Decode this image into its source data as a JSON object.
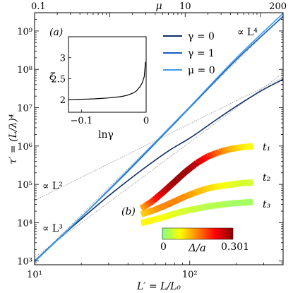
{
  "chart_data": [
    {
      "id": "main",
      "type": "line",
      "xscale": "log",
      "yscale": "log",
      "xlim": [
        10,
        400
      ],
      "ylim": [
        800,
        3000000000
      ],
      "top_axis": {
        "label": "μ",
        "ticks": [
          0.1,
          10,
          200
        ],
        "tick_labels": [
          "0.1",
          "10",
          "200"
        ]
      },
      "xlabel": "L′ = L/L₀",
      "ylabel": "τ′ = (L/λ)⁴",
      "x_ticks": [
        10,
        100
      ],
      "x_tick_labels": [
        "10¹",
        "10²"
      ],
      "y_ticks": [
        1000,
        10000,
        100000,
        1000000,
        10000000,
        100000000,
        1000000000
      ],
      "y_tick_labels": [
        "10³",
        "10⁴",
        "10⁵",
        "10⁶",
        "10⁷",
        "10⁸",
        "10⁹"
      ],
      "grid": false,
      "legend_position": "top-right",
      "series": [
        {
          "name": "γ = 0",
          "color": "#0d2f66",
          "x": [
            10,
            15,
            20,
            30,
            50,
            75,
            100,
            150,
            200,
            300,
            400
          ],
          "y": [
            1000,
            4500,
            12500,
            50000,
            250000,
            800000,
            1600000,
            5000000,
            11000000,
            30000000,
            55000000
          ]
        },
        {
          "name": "γ = 1",
          "color": "#1560bd",
          "x": [
            10,
            20,
            40,
            100,
            200,
            400
          ],
          "y": [
            1000,
            14000,
            220000,
            10000000,
            180000000,
            2400000000
          ]
        },
        {
          "name": "μ = 0",
          "color": "#3d9be9",
          "x": [
            10,
            20,
            40,
            100,
            200,
            400
          ],
          "y": [
            950,
            14000,
            235000,
            10500000,
            200000000,
            2900000000
          ]
        }
      ],
      "guides": [
        {
          "label": "∝ L²",
          "x": [
            10,
            400
          ],
          "y": [
            38000,
            60800000
          ]
        },
        {
          "label": "∝ L³",
          "x": [
            10,
            400
          ],
          "y": [
            1250,
            80000000
          ]
        },
        {
          "label": "∝ L⁴",
          "x": [
            10,
            400
          ],
          "y": [
            1000,
            2560000000
          ]
        }
      ]
    },
    {
      "id": "inset-a",
      "panel_label": "(a)",
      "type": "line",
      "xlabel": "lnγ",
      "ylabel": "ζ",
      "xlim": [
        -0.12,
        0
      ],
      "ylim": [
        1.7,
        3.5
      ],
      "x_ticks": [
        -0.1,
        0
      ],
      "x_tick_labels": [
        "−0.1",
        "0"
      ],
      "y_ticks": [
        2,
        2.5,
        3
      ],
      "y_tick_labels": [
        "2",
        "2.5",
        "3"
      ],
      "series": [
        {
          "color": "#000000",
          "x": [
            -0.12,
            -0.1,
            -0.08,
            -0.06,
            -0.04,
            -0.03,
            -0.02,
            -0.015,
            -0.01,
            -0.006,
            -0.003,
            -0.001
          ],
          "y": [
            2.0,
            2.01,
            2.02,
            2.04,
            2.07,
            2.1,
            2.16,
            2.21,
            2.3,
            2.4,
            2.55,
            2.9
          ]
        }
      ]
    },
    {
      "id": "inset-b",
      "panel_label": "(b)",
      "type": "line",
      "colorbar": {
        "label": "Δ/a",
        "min_label": "0",
        "max_label": "0.301",
        "min": 0,
        "max": 0.301,
        "colors": [
          "#80ff80",
          "#ffff00",
          "#ff8000",
          "#ff0000",
          "#8b0000"
        ]
      },
      "series": [
        {
          "name": "t₁",
          "x": [
            0,
            0.1,
            0.2,
            0.3,
            0.4,
            0.5,
            0.6,
            0.7,
            0.8,
            0.9,
            1
          ],
          "y": [
            0.1,
            0.2,
            0.33,
            0.47,
            0.61,
            0.73,
            0.82,
            0.88,
            0.92,
            0.945,
            0.96
          ],
          "delta": [
            0.12,
            0.2,
            0.26,
            0.29,
            0.29,
            0.26,
            0.21,
            0.16,
            0.12,
            0.09,
            0.07
          ]
        },
        {
          "name": "t₂",
          "x": [
            0,
            0.1,
            0.2,
            0.3,
            0.4,
            0.5,
            0.6,
            0.7,
            0.8,
            0.9,
            1
          ],
          "y": [
            0.02,
            0.07,
            0.13,
            0.2,
            0.27,
            0.33,
            0.38,
            0.41,
            0.43,
            0.45,
            0.46
          ],
          "delta": [
            0.1,
            0.13,
            0.15,
            0.15,
            0.14,
            0.12,
            0.1,
            0.08,
            0.06,
            0.05,
            0.05
          ]
        },
        {
          "name": "t₃",
          "x": [
            0,
            0.1,
            0.2,
            0.3,
            0.4,
            0.5,
            0.6,
            0.7,
            0.8,
            0.9,
            1
          ],
          "y": [
            -0.1,
            -0.06,
            -0.02,
            0.03,
            0.07,
            0.1,
            0.13,
            0.15,
            0.17,
            0.18,
            0.19
          ],
          "delta": [
            0.08,
            0.08,
            0.07,
            0.06,
            0.05,
            0.04,
            0.03,
            0.03,
            0.02,
            0.02,
            0.02
          ]
        }
      ]
    }
  ]
}
